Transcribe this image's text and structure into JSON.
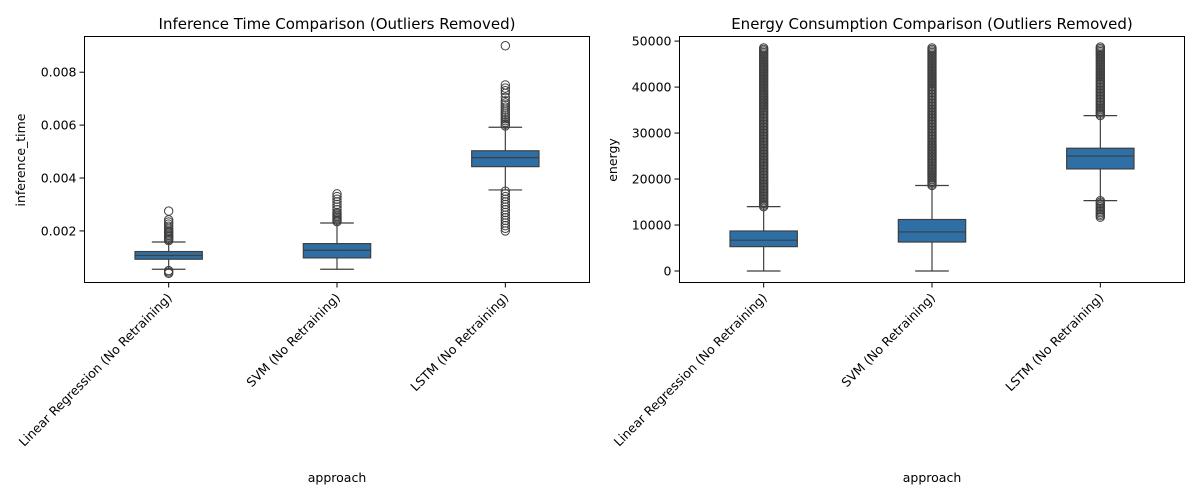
{
  "chart_data": [
    {
      "type": "box",
      "title": "Inference Time Comparison (Outliers Removed)",
      "xlabel": "approach",
      "ylabel": "inference_time",
      "categories": [
        "Linear Regression (No Retraining)",
        "SVM (No Retraining)",
        "LSTM (No Retraining)"
      ],
      "ylim": [
        5e-05,
        0.00935
      ],
      "yticks": [
        0.002,
        0.004,
        0.006,
        0.008
      ],
      "ytick_labels": [
        "0.002",
        "0.004",
        "0.006",
        "0.008"
      ],
      "color": "#2e6fa6",
      "boxes": [
        {
          "whislo": 0.00055,
          "q1": 0.00093,
          "med": 0.00107,
          "q3": 0.00122,
          "whishi": 0.00158,
          "outliers": [
            0.0004,
            0.00045,
            0.0005,
            0.00163,
            0.00168,
            0.00173,
            0.00178,
            0.00183,
            0.00188,
            0.00193,
            0.00198,
            0.00203,
            0.0021,
            0.00218,
            0.00226,
            0.00234,
            0.00242,
            0.00275
          ]
        },
        {
          "whislo": 0.00055,
          "q1": 0.00098,
          "med": 0.00127,
          "q3": 0.00152,
          "whishi": 0.0023,
          "outliers": [
            0.00235,
            0.0024,
            0.00245,
            0.0025,
            0.00255,
            0.0026,
            0.00265,
            0.0027,
            0.0028,
            0.0029,
            0.003,
            0.0031,
            0.0032,
            0.0033,
            0.0034
          ]
        },
        {
          "whislo": 0.00355,
          "q1": 0.00443,
          "med": 0.00477,
          "q3": 0.00503,
          "whishi": 0.00592,
          "outliers": [
            0.002,
            0.0021,
            0.0022,
            0.0023,
            0.0024,
            0.0025,
            0.0026,
            0.0027,
            0.0028,
            0.0029,
            0.003,
            0.0031,
            0.0032,
            0.0033,
            0.0034,
            0.0035,
            0.00597,
            0.00603,
            0.0061,
            0.00617,
            0.00624,
            0.00631,
            0.00638,
            0.00645,
            0.00652,
            0.0066,
            0.00668,
            0.00676,
            0.00684,
            0.00692,
            0.00705,
            0.0072,
            0.0073,
            0.0074,
            0.00752,
            0.009
          ]
        }
      ]
    },
    {
      "type": "box",
      "title": "Energy Consumption Comparison (Outliers Removed)",
      "xlabel": "approach",
      "ylabel": "energy",
      "categories": [
        "Linear Regression (No Retraining)",
        "SVM (No Retraining)",
        "LSTM (No Retraining)"
      ],
      "ylim": [
        -2500,
        51000
      ],
      "yticks": [
        0,
        10000,
        20000,
        30000,
        40000,
        50000
      ],
      "ytick_labels": [
        "0",
        "10000",
        "20000",
        "30000",
        "40000",
        "50000"
      ],
      "color": "#2e6fa6",
      "boxes": [
        {
          "whislo": 0,
          "q1": 5300,
          "med": 6700,
          "q3": 8700,
          "whishi": 14000,
          "outlier_band": [
            14000,
            48500
          ]
        },
        {
          "whislo": 0,
          "q1": 6300,
          "med": 8500,
          "q3": 11200,
          "whishi": 18600,
          "outlier_band": [
            18600,
            48500
          ]
        },
        {
          "whislo": 15300,
          "q1": 22200,
          "med": 25000,
          "q3": 26700,
          "whishi": 33800,
          "outlier_band_low": [
            11700,
            15300
          ],
          "outlier_band": [
            33800,
            48700
          ]
        }
      ]
    }
  ]
}
